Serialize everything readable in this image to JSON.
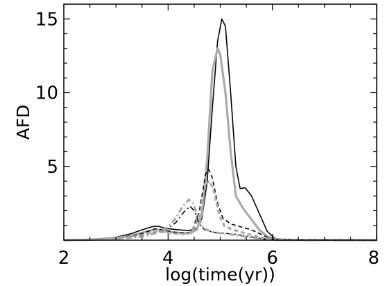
{
  "chart_data": {
    "type": "line",
    "title": "",
    "xlabel": "log(time(yr))",
    "ylabel": "AFD",
    "xlim": [
      2,
      8
    ],
    "ylim": [
      0,
      16
    ],
    "xticks": [
      2,
      4,
      6,
      8
    ],
    "yticks": [
      5,
      10,
      15
    ],
    "xtick_labels": [
      "2",
      "4",
      "6",
      "8"
    ],
    "ytick_labels": [
      "5",
      "10",
      "15"
    ],
    "grid": false,
    "legend": "none",
    "series": [
      {
        "style": "solid",
        "color": "#000000",
        "width": 1.6,
        "points": [
          [
            2.0,
            0.0
          ],
          [
            2.5,
            0.05
          ],
          [
            3.0,
            0.2
          ],
          [
            3.3,
            0.45
          ],
          [
            3.5,
            0.7
          ],
          [
            3.7,
            0.92
          ],
          [
            3.8,
            0.95
          ],
          [
            3.9,
            0.85
          ],
          [
            4.0,
            0.78
          ],
          [
            4.2,
            0.7
          ],
          [
            4.4,
            0.65
          ],
          [
            4.55,
            0.8
          ],
          [
            4.65,
            1.5
          ],
          [
            4.75,
            4.0
          ],
          [
            4.85,
            9.0
          ],
          [
            4.95,
            13.5
          ],
          [
            5.03,
            15.0
          ],
          [
            5.1,
            14.5
          ],
          [
            5.2,
            10.0
          ],
          [
            5.3,
            5.0
          ],
          [
            5.38,
            3.5
          ],
          [
            5.48,
            3.55
          ],
          [
            5.6,
            3.0
          ],
          [
            5.75,
            1.8
          ],
          [
            5.9,
            0.6
          ],
          [
            6.05,
            0.12
          ],
          [
            6.3,
            0.02
          ],
          [
            8.0,
            0.0
          ]
        ]
      },
      {
        "style": "solid",
        "color": "#aaaaaa",
        "width": 3.2,
        "points": [
          [
            2.0,
            0.0
          ],
          [
            2.5,
            0.03
          ],
          [
            3.0,
            0.15
          ],
          [
            3.3,
            0.3
          ],
          [
            3.5,
            0.5
          ],
          [
            3.7,
            0.68
          ],
          [
            3.8,
            0.72
          ],
          [
            3.9,
            0.62
          ],
          [
            4.0,
            0.55
          ],
          [
            4.2,
            0.5
          ],
          [
            4.4,
            0.45
          ],
          [
            4.55,
            0.7
          ],
          [
            4.65,
            1.8
          ],
          [
            4.75,
            5.5
          ],
          [
            4.85,
            11.5
          ],
          [
            4.95,
            13.0
          ],
          [
            5.0,
            12.6
          ],
          [
            5.1,
            10.0
          ],
          [
            5.2,
            6.0
          ],
          [
            5.3,
            3.0
          ],
          [
            5.45,
            2.1
          ],
          [
            5.6,
            1.4
          ],
          [
            5.75,
            0.7
          ],
          [
            5.9,
            0.25
          ],
          [
            6.05,
            0.08
          ],
          [
            6.3,
            0.02
          ],
          [
            8.0,
            0.0
          ]
        ]
      },
      {
        "style": "dashed",
        "color": "#000000",
        "width": 1.6,
        "points": [
          [
            2.0,
            0.0
          ],
          [
            3.0,
            0.1
          ],
          [
            3.5,
            0.45
          ],
          [
            3.75,
            0.78
          ],
          [
            3.9,
            0.7
          ],
          [
            4.1,
            0.55
          ],
          [
            4.3,
            0.5
          ],
          [
            4.45,
            0.55
          ],
          [
            4.6,
            2.0
          ],
          [
            4.72,
            4.5
          ],
          [
            4.78,
            4.8
          ],
          [
            4.85,
            4.2
          ],
          [
            4.95,
            2.5
          ],
          [
            5.05,
            1.5
          ],
          [
            5.2,
            1.1
          ],
          [
            5.4,
            0.9
          ],
          [
            5.6,
            0.7
          ],
          [
            5.75,
            0.45
          ],
          [
            5.9,
            0.2
          ],
          [
            6.05,
            0.06
          ],
          [
            6.3,
            0.01
          ],
          [
            8.0,
            0.0
          ]
        ]
      },
      {
        "style": "dashed",
        "color": "#aaaaaa",
        "width": 3.2,
        "points": [
          [
            2.0,
            0.0
          ],
          [
            3.0,
            0.08
          ],
          [
            3.5,
            0.35
          ],
          [
            3.75,
            0.6
          ],
          [
            3.9,
            0.55
          ],
          [
            4.1,
            0.45
          ],
          [
            4.3,
            0.42
          ],
          [
            4.45,
            0.5
          ],
          [
            4.6,
            1.6
          ],
          [
            4.72,
            3.8
          ],
          [
            4.8,
            4.0
          ],
          [
            4.88,
            3.3
          ],
          [
            4.98,
            1.7
          ],
          [
            5.08,
            0.95
          ],
          [
            5.25,
            0.7
          ],
          [
            5.45,
            0.5
          ],
          [
            5.65,
            0.3
          ],
          [
            5.85,
            0.12
          ],
          [
            6.05,
            0.03
          ],
          [
            8.0,
            0.0
          ]
        ]
      },
      {
        "style": "dashdot",
        "color": "#000000",
        "width": 1.6,
        "points": [
          [
            2.0,
            0.0
          ],
          [
            3.0,
            0.08
          ],
          [
            3.5,
            0.3
          ],
          [
            3.8,
            0.55
          ],
          [
            4.0,
            0.8
          ],
          [
            4.15,
            1.2
          ],
          [
            4.3,
            1.9
          ],
          [
            4.42,
            2.3
          ],
          [
            4.5,
            2.0
          ],
          [
            4.6,
            1.1
          ],
          [
            4.7,
            0.7
          ],
          [
            4.85,
            0.55
          ],
          [
            5.05,
            0.48
          ],
          [
            5.3,
            0.4
          ],
          [
            5.55,
            0.25
          ],
          [
            5.8,
            0.1
          ],
          [
            6.05,
            0.03
          ],
          [
            8.0,
            0.0
          ]
        ]
      },
      {
        "style": "dashdot",
        "color": "#aaaaaa",
        "width": 3.2,
        "points": [
          [
            2.0,
            0.0
          ],
          [
            3.0,
            0.06
          ],
          [
            3.5,
            0.25
          ],
          [
            3.8,
            0.5
          ],
          [
            4.0,
            0.9
          ],
          [
            4.15,
            1.5
          ],
          [
            4.28,
            2.3
          ],
          [
            4.4,
            2.75
          ],
          [
            4.48,
            2.5
          ],
          [
            4.58,
            1.5
          ],
          [
            4.68,
            0.8
          ],
          [
            4.85,
            0.55
          ],
          [
            5.05,
            0.45
          ],
          [
            5.3,
            0.35
          ],
          [
            5.55,
            0.2
          ],
          [
            5.8,
            0.08
          ],
          [
            6.05,
            0.02
          ],
          [
            8.0,
            0.0
          ]
        ]
      }
    ]
  }
}
